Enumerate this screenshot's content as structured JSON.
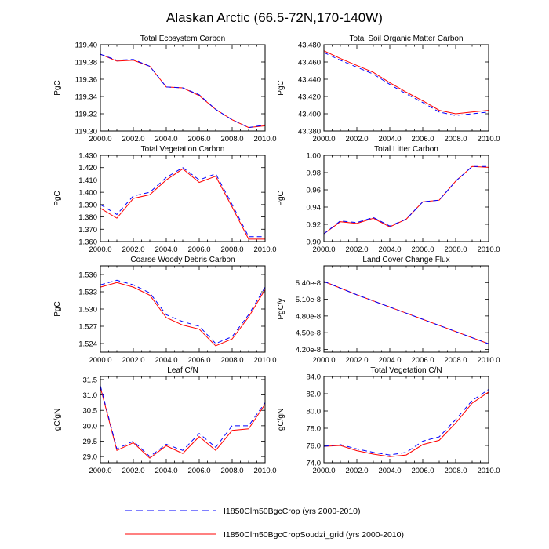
{
  "figure": {
    "title": "Alaskan Arctic (66.5-72N,170-140W)",
    "series_colors": {
      "I1850Clm50BgcCrop (yrs 2000-2010)": "#0000ff",
      "I1850Clm50BgcCropSoudzi_grid (yrs 2000-2010)": "#ff0000"
    },
    "legend": [
      {
        "label": "I1850Clm50BgcCrop (yrs 2000-2010)",
        "style": "dashed",
        "color": "#0000ff"
      },
      {
        "label": "I1850Clm50BgcCropSoudzi_grid (yrs 2000-2010)",
        "style": "solid",
        "color": "#ff0000"
      }
    ]
  },
  "chart_data": [
    {
      "type": "line",
      "title": "Total Ecosystem Carbon",
      "xlabel": "",
      "ylabel": "PgC",
      "xlim": [
        2000,
        2010
      ],
      "ylim": [
        119.3,
        119.4
      ],
      "xticks": [
        "2000.0",
        "2002.0",
        "2004.0",
        "2006.0",
        "2008.0",
        "2010.0"
      ],
      "yticks": [
        "119.30",
        "119.32",
        "119.34",
        "119.36",
        "119.38",
        "119.40"
      ],
      "x": [
        2000,
        2001,
        2002,
        2003,
        2004,
        2005,
        2006,
        2007,
        2008,
        2009,
        2010
      ],
      "series": [
        {
          "name": "I1850Clm50BgcCrop (yrs 2000-2010)",
          "values": [
            119.389,
            119.382,
            119.383,
            119.375,
            119.351,
            119.35,
            119.342,
            119.325,
            119.313,
            119.304,
            119.307
          ]
        },
        {
          "name": "I1850Clm50BgcCropSoudzi_grid (yrs 2000-2010)",
          "values": [
            119.389,
            119.381,
            119.382,
            119.375,
            119.351,
            119.35,
            119.341,
            119.325,
            119.313,
            119.304,
            119.306
          ]
        }
      ]
    },
    {
      "type": "line",
      "title": "Total Soil Organic Matter Carbon",
      "xlabel": "",
      "ylabel": "PgC",
      "xlim": [
        2000,
        2010
      ],
      "ylim": [
        43.38,
        43.48
      ],
      "xticks": [
        "2000.0",
        "2002.0",
        "2004.0",
        "2006.0",
        "2008.0",
        "2010.0"
      ],
      "yticks": [
        "43.380",
        "43.400",
        "43.420",
        "43.440",
        "43.460",
        "43.480"
      ],
      "x": [
        2000,
        2001,
        2002,
        2003,
        2004,
        2005,
        2006,
        2007,
        2008,
        2009,
        2010
      ],
      "series": [
        {
          "name": "I1850Clm50BgcCrop (yrs 2000-2010)",
          "values": [
            43.471,
            43.462,
            43.454,
            43.446,
            43.434,
            43.423,
            43.413,
            43.402,
            43.398,
            43.4,
            43.402
          ]
        },
        {
          "name": "I1850Clm50BgcCropSoudzi_grid (yrs 2000-2010)",
          "values": [
            43.473,
            43.464,
            43.456,
            43.448,
            43.436,
            43.425,
            43.415,
            43.404,
            43.4,
            43.402,
            43.404
          ]
        }
      ]
    },
    {
      "type": "line",
      "title": "Total Vegetation Carbon",
      "xlabel": "",
      "ylabel": "PgC",
      "xlim": [
        2000,
        2010
      ],
      "ylim": [
        1.36,
        1.43
      ],
      "xticks": [
        "2000.0",
        "2002.0",
        "2004.0",
        "2006.0",
        "2008.0",
        "2010.0"
      ],
      "yticks": [
        "1.360",
        "1.370",
        "1.380",
        "1.390",
        "1.400",
        "1.410",
        "1.420",
        "1.430"
      ],
      "x": [
        2000,
        2001,
        2002,
        2003,
        2004,
        2005,
        2006,
        2007,
        2008,
        2009,
        2010
      ],
      "series": [
        {
          "name": "I1850Clm50BgcCrop (yrs 2000-2010)",
          "values": [
            1.39,
            1.382,
            1.397,
            1.4,
            1.412,
            1.42,
            1.41,
            1.415,
            1.39,
            1.364,
            1.364
          ]
        },
        {
          "name": "I1850Clm50BgcCropSoudzi_grid (yrs 2000-2010)",
          "values": [
            1.387,
            1.379,
            1.395,
            1.398,
            1.41,
            1.419,
            1.408,
            1.413,
            1.388,
            1.362,
            1.362
          ]
        }
      ]
    },
    {
      "type": "line",
      "title": "Total Litter Carbon",
      "xlabel": "",
      "ylabel": "PgC",
      "xlim": [
        2000,
        2010
      ],
      "ylim": [
        0.9,
        1.0
      ],
      "xticks": [
        "2000.0",
        "2002.0",
        "2004.0",
        "2006.0",
        "2008.0",
        "2010.0"
      ],
      "yticks": [
        "0.90",
        "0.92",
        "0.94",
        "0.96",
        "0.98",
        "1.00"
      ],
      "x": [
        2000,
        2001,
        2002,
        2003,
        2004,
        2005,
        2006,
        2007,
        2008,
        2009,
        2010
      ],
      "series": [
        {
          "name": "I1850Clm50BgcCrop (yrs 2000-2010)",
          "values": [
            0.909,
            0.924,
            0.922,
            0.928,
            0.918,
            0.926,
            0.946,
            0.948,
            0.97,
            0.987,
            0.987
          ]
        },
        {
          "name": "I1850Clm50BgcCropSoudzi_grid (yrs 2000-2010)",
          "values": [
            0.909,
            0.923,
            0.921,
            0.927,
            0.917,
            0.926,
            0.946,
            0.948,
            0.97,
            0.987,
            0.986
          ]
        }
      ]
    },
    {
      "type": "line",
      "title": "Coarse Woody Debris Carbon",
      "xlabel": "",
      "ylabel": "PgC",
      "xlim": [
        2000,
        2010
      ],
      "ylim": [
        1.5225,
        1.5375
      ],
      "xticks": [
        "2000.0",
        "2002.0",
        "2004.0",
        "2006.0",
        "2008.0",
        "2010.0"
      ],
      "yticks": [
        "1.524",
        "1.527",
        "1.530",
        "1.533",
        "1.536"
      ],
      "x": [
        2000,
        2001,
        2002,
        2003,
        2004,
        2005,
        2006,
        2007,
        2008,
        2009,
        2010
      ],
      "series": [
        {
          "name": "I1850Clm50BgcCrop (yrs 2000-2010)",
          "values": [
            1.5342,
            1.535,
            1.5342,
            1.5328,
            1.529,
            1.5278,
            1.527,
            1.524,
            1.5252,
            1.529,
            1.5338
          ]
        },
        {
          "name": "I1850Clm50BgcCropSoudzi_grid (yrs 2000-2010)",
          "values": [
            1.5338,
            1.5346,
            1.5338,
            1.5324,
            1.5285,
            1.5272,
            1.5265,
            1.5236,
            1.5248,
            1.5286,
            1.5334
          ]
        }
      ]
    },
    {
      "type": "line",
      "title": "Land Cover Change Flux",
      "xlabel": "",
      "ylabel": "PgC/y",
      "xlim": [
        2000,
        2010
      ],
      "ylim": [
        4.15e-08,
        5.7e-08
      ],
      "xticks": [
        "2000.0",
        "2002.0",
        "2004.0",
        "2006.0",
        "2008.0",
        "2010.0"
      ],
      "yticks": [
        "4.20e-8",
        "4.50e-8",
        "4.80e-8",
        "5.10e-8",
        "5.40e-8"
      ],
      "x": [
        2000,
        2001,
        2002,
        2003,
        2004,
        2005,
        2006,
        2007,
        2008,
        2009,
        2010
      ],
      "series": [
        {
          "name": "I1850Clm50BgcCrop (yrs 2000-2010)",
          "values": [
            5.42e-08,
            5.3e-08,
            5.18e-08,
            5.07e-08,
            4.96e-08,
            4.85e-08,
            4.74e-08,
            4.63e-08,
            4.52e-08,
            4.41e-08,
            4.3e-08
          ]
        },
        {
          "name": "I1850Clm50BgcCropSoudzi_grid (yrs 2000-2010)",
          "values": [
            5.42e-08,
            5.3e-08,
            5.18e-08,
            5.07e-08,
            4.96e-08,
            4.85e-08,
            4.74e-08,
            4.63e-08,
            4.52e-08,
            4.41e-08,
            4.3e-08
          ]
        }
      ]
    },
    {
      "type": "line",
      "title": "Leaf C/N",
      "xlabel": "",
      "ylabel": "gC/gN",
      "xlim": [
        2000,
        2010
      ],
      "ylim": [
        28.8,
        31.6
      ],
      "xticks": [
        "2000.0",
        "2002.0",
        "2004.0",
        "2006.0",
        "2008.0",
        "2010.0"
      ],
      "yticks": [
        "29.0",
        "29.5",
        "30.0",
        "30.5",
        "31.0",
        "31.5"
      ],
      "x": [
        2000,
        2001,
        2002,
        2003,
        2004,
        2005,
        2006,
        2007,
        2008,
        2009,
        2010
      ],
      "series": [
        {
          "name": "I1850Clm50BgcCrop (yrs 2000-2010)",
          "values": [
            31.3,
            29.25,
            29.5,
            29.0,
            29.4,
            29.2,
            29.75,
            29.3,
            30.0,
            30.0,
            30.75
          ]
        },
        {
          "name": "I1850Clm50BgcCropSoudzi_grid (yrs 2000-2010)",
          "values": [
            31.25,
            29.2,
            29.45,
            28.95,
            29.35,
            29.1,
            29.65,
            29.2,
            29.85,
            29.9,
            30.7
          ]
        }
      ]
    },
    {
      "type": "line",
      "title": "Total Vegetation C/N",
      "xlabel": "",
      "ylabel": "gC/gN",
      "xlim": [
        2000,
        2010
      ],
      "ylim": [
        74.0,
        84.0
      ],
      "xticks": [
        "2000.0",
        "2002.0",
        "2004.0",
        "2006.0",
        "2008.0",
        "2010.0"
      ],
      "yticks": [
        "74.0",
        "76.0",
        "78.0",
        "80.0",
        "82.0",
        "84.0"
      ],
      "x": [
        2000,
        2001,
        2002,
        2003,
        2004,
        2005,
        2006,
        2007,
        2008,
        2009,
        2010
      ],
      "series": [
        {
          "name": "I1850Clm50BgcCrop (yrs 2000-2010)",
          "values": [
            75.9,
            76.1,
            75.6,
            75.2,
            74.9,
            75.2,
            76.5,
            77.0,
            79.0,
            81.2,
            82.5
          ]
        },
        {
          "name": "I1850Clm50BgcCropSoudzi_grid (yrs 2000-2010)",
          "values": [
            75.9,
            76.0,
            75.4,
            75.0,
            74.7,
            74.9,
            76.1,
            76.6,
            78.6,
            80.9,
            82.2
          ]
        }
      ]
    }
  ]
}
